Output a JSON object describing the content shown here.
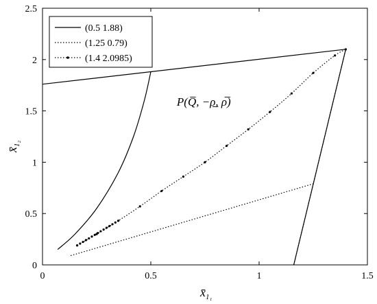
{
  "chart_data": {
    "type": "line",
    "xlim": [
      0,
      1.5
    ],
    "ylim": [
      0,
      2.5
    ],
    "x_ticks": [
      "0",
      "0.5",
      "1",
      "1.5"
    ],
    "y_ticks": [
      "0",
      "0.5",
      "1",
      "1.5",
      "2",
      "2.5"
    ],
    "xlabel": "x̄",
    "xlabel_sub": "1₁",
    "ylabel": "x̄",
    "ylabel_sub": "1₂",
    "grid": false,
    "legend_position": "top-left",
    "annotation": {
      "text": "P(Q̅, −ρ̲, ρ̅)",
      "x": 0.62,
      "y": 1.55
    },
    "series": [
      {
        "name": "(0.5 1.88)",
        "style": "solid",
        "segments": [
          {
            "x": [
              0,
              1.4
            ],
            "y": [
              1.76,
              2.1
            ]
          },
          {
            "x": [
              0.07,
              0.15,
              0.25,
              0.35,
              0.42,
              0.47,
              0.5
            ],
            "y": [
              0.15,
              0.3,
              0.55,
              0.9,
              1.25,
              1.6,
              1.88
            ]
          },
          {
            "x": [
              1.16,
              1.4
            ],
            "y": [
              0,
              2.1
            ]
          }
        ]
      },
      {
        "name": "(1.25 0.79)",
        "style": "dotted",
        "segments": [
          {
            "x": [
              0.13,
              1.25
            ],
            "y": [
              0.09,
              0.79
            ]
          },
          {
            "x": [
              1.16,
              1.4
            ],
            "y": [
              0,
              2.1
            ]
          }
        ]
      },
      {
        "name": "(1.4 2.0985)",
        "style": "dotted-markers",
        "segments": [
          {
            "x": [
              0.16,
              0.25,
              0.35,
              0.45,
              0.55,
              0.65,
              0.75,
              0.85,
              0.95,
              1.05,
              1.15,
              1.25,
              1.35,
              1.4
            ],
            "y": [
              0.19,
              0.3,
              0.43,
              0.57,
              0.72,
              0.86,
              1.0,
              1.16,
              1.32,
              1.49,
              1.67,
              1.87,
              2.04,
              2.1
            ]
          }
        ]
      }
    ]
  }
}
